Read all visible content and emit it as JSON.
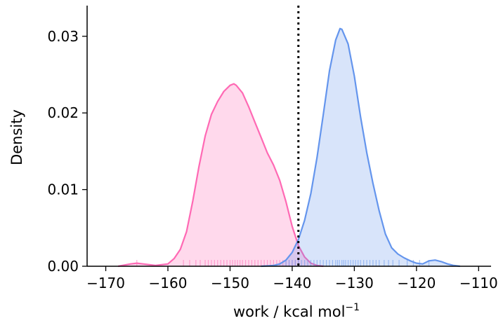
{
  "chart_data": {
    "type": "area",
    "title": "",
    "xlabel": "work / kcal mol",
    "xlabel_sup": "−1",
    "ylabel": "Density",
    "xlim": [
      -173,
      -108
    ],
    "ylim": [
      0,
      0.034
    ],
    "x_ticks": [
      -170,
      -160,
      -150,
      -140,
      -130,
      -120,
      -110
    ],
    "x_tick_labels": [
      "−170",
      "−160",
      "−150",
      "−140",
      "−130",
      "−120",
      "−110"
    ],
    "y_ticks": [
      0,
      0.01,
      0.02,
      0.03
    ],
    "y_tick_labels": [
      "0.00",
      "0.01",
      "0.02",
      "0.03"
    ],
    "grid": false,
    "reference_line": {
      "x": -139,
      "style": "dotted",
      "color": "#000000"
    },
    "series": [
      {
        "color": "#ff69b4",
        "kde": [
          [
            -168,
            0.0
          ],
          [
            -166,
            0.0003
          ],
          [
            -165,
            0.0004
          ],
          [
            -164,
            0.0003
          ],
          [
            -162,
            0.0001
          ],
          [
            -160,
            0.0003
          ],
          [
            -159,
            0.001
          ],
          [
            -158,
            0.0022
          ],
          [
            -157,
            0.0045
          ],
          [
            -156,
            0.0085
          ],
          [
            -155,
            0.013
          ],
          [
            -154,
            0.017
          ],
          [
            -153,
            0.0198
          ],
          [
            -152,
            0.0215
          ],
          [
            -151,
            0.0228
          ],
          [
            -150,
            0.0236
          ],
          [
            -149.4,
            0.0238
          ],
          [
            -149,
            0.0236
          ],
          [
            -148,
            0.0226
          ],
          [
            -147,
            0.0208
          ],
          [
            -146,
            0.0188
          ],
          [
            -145,
            0.0168
          ],
          [
            -144,
            0.0148
          ],
          [
            -143,
            0.0132
          ],
          [
            -142,
            0.0112
          ],
          [
            -141,
            0.0084
          ],
          [
            -140,
            0.0052
          ],
          [
            -139,
            0.0027
          ],
          [
            -138,
            0.0012
          ],
          [
            -137,
            0.0004
          ],
          [
            -136,
            0.0001
          ],
          [
            -135,
            0.0
          ]
        ],
        "rug": [
          -165,
          -157.5,
          -156.5,
          -155.5,
          -154.8,
          -154,
          -153.5,
          -153,
          -152.5,
          -152,
          -151.5,
          -151,
          -150.5,
          -150,
          -149.6,
          -149.2,
          -148.8,
          -148.4,
          -148,
          -147.5,
          -147,
          -146.5,
          -146,
          -145.5,
          -145,
          -144.5,
          -144,
          -143.5,
          -143,
          -142.5,
          -142,
          -141.5,
          -141,
          -140.5,
          -140,
          -139.5,
          -139
        ]
      },
      {
        "color": "#6495ed",
        "kde": [
          [
            -145,
            0.0
          ],
          [
            -143,
            0.0001
          ],
          [
            -142,
            0.0003
          ],
          [
            -141,
            0.0008
          ],
          [
            -140,
            0.0018
          ],
          [
            -139,
            0.0035
          ],
          [
            -138,
            0.006
          ],
          [
            -137,
            0.0095
          ],
          [
            -136,
            0.0142
          ],
          [
            -135,
            0.0198
          ],
          [
            -134,
            0.0255
          ],
          [
            -133,
            0.0295
          ],
          [
            -132.3,
            0.031
          ],
          [
            -132,
            0.0309
          ],
          [
            -131,
            0.029
          ],
          [
            -130,
            0.0248
          ],
          [
            -129,
            0.0195
          ],
          [
            -128,
            0.0148
          ],
          [
            -127,
            0.0108
          ],
          [
            -126,
            0.0072
          ],
          [
            -125,
            0.0042
          ],
          [
            -124,
            0.0024
          ],
          [
            -123,
            0.0016
          ],
          [
            -122,
            0.0011
          ],
          [
            -121,
            0.0007
          ],
          [
            -120,
            0.0004
          ],
          [
            -119,
            0.0003
          ],
          [
            -118,
            0.0007
          ],
          [
            -117,
            0.0008
          ],
          [
            -116,
            0.0006
          ],
          [
            -115,
            0.0003
          ],
          [
            -114,
            0.0001
          ],
          [
            -113,
            0.0
          ]
        ],
        "rug": [
          -141,
          -140.5,
          -140,
          -139.5,
          -139,
          -138.5,
          -138,
          -137.5,
          -137,
          -136.5,
          -136,
          -135.5,
          -135,
          -134.5,
          -134,
          -133.5,
          -133,
          -132.7,
          -132.4,
          -132,
          -131.7,
          -131.4,
          -131,
          -130.6,
          -130.2,
          -129.8,
          -129.4,
          -129,
          -128.5,
          -128,
          -127.5,
          -127,
          -126.5,
          -126,
          -125.2,
          -124.5,
          -123.8,
          -122.8,
          -121.5,
          -120.5,
          -119.5,
          -118
        ]
      }
    ]
  }
}
